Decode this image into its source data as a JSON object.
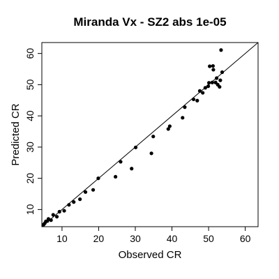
{
  "chart_data": {
    "type": "scatter",
    "title": "Miranda Vx  -  SZ2 abs 1e-05",
    "xlabel": "Observed CR",
    "ylabel": "Predicted CR",
    "xlim": [
      4.5,
      63.5
    ],
    "ylim": [
      4.5,
      63.5
    ],
    "xticks": [
      10,
      20,
      30,
      40,
      50,
      60
    ],
    "yticks": [
      10,
      20,
      30,
      40,
      50,
      60
    ],
    "reference_line": "y = x",
    "grid": false,
    "legend": "none",
    "point_color": "#000000",
    "line_color": "#000000",
    "x": [
      5.0,
      5.3,
      5.6,
      6.0,
      6.3,
      7.0,
      7.6,
      8.6,
      9.3,
      10.6,
      11.9,
      13.2,
      14.9,
      16.4,
      18.5,
      19.9,
      24.6,
      26.0,
      29.0,
      30.1,
      34.4,
      34.9,
      39.0,
      39.4,
      42.9,
      43.5,
      45.9,
      46.9,
      47.6,
      48.4,
      49.1,
      49.9,
      50.1,
      50.3,
      51.0,
      51.2,
      51.3,
      51.9,
      52.2,
      52.5,
      53.0,
      53.2,
      53.4,
      53.7
    ],
    "y": [
      5.2,
      5.6,
      6.2,
      6.3,
      7.0,
      6.6,
      8.3,
      7.7,
      9.3,
      9.6,
      11.5,
      12.4,
      13.3,
      15.6,
      16.3,
      20.0,
      20.5,
      25.3,
      23.1,
      29.9,
      28.0,
      33.4,
      35.8,
      36.7,
      39.4,
      42.8,
      45.3,
      44.9,
      48.0,
      47.4,
      49.0,
      49.5,
      50.6,
      55.9,
      50.7,
      56.0,
      54.8,
      50.7,
      52.1,
      50.0,
      49.3,
      51.4,
      61.1,
      54.0
    ]
  }
}
